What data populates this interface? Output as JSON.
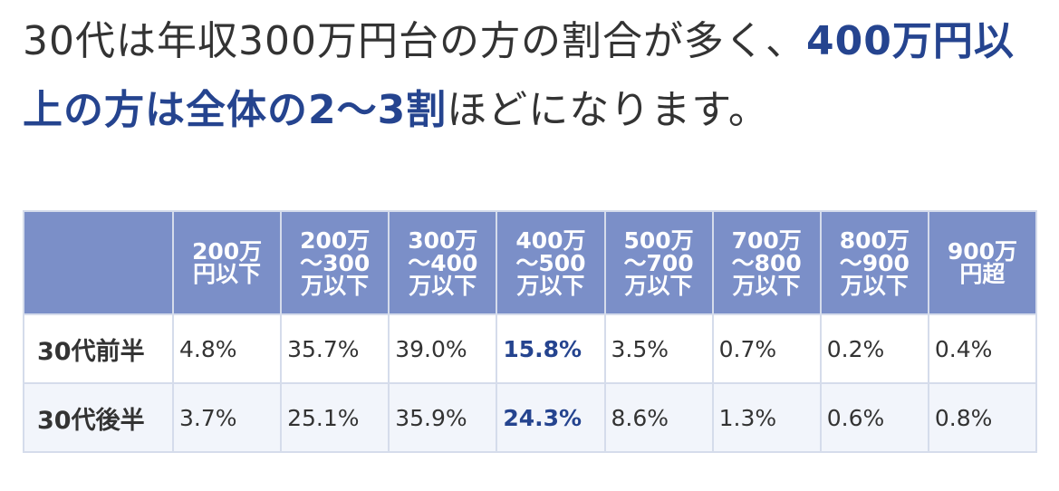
{
  "paragraph": [
    "30代は年収300万円台の方の割合が多く、",
    "400万円以上の方は全体の2〜3割",
    "ほどになります。"
  ],
  "table": {
    "headers": [
      "200万\n円以下",
      "200万\n〜300\n万以下",
      "300万\n〜400\n万以下",
      "400万\n〜500\n万以下",
      "500万\n〜700\n万以下",
      "700万\n〜800\n万以下",
      "800万\n〜900\n万以下",
      "900万\n円超"
    ],
    "rows": [
      {
        "label": "30代前半",
        "values": [
          "4.8%",
          "35.7%",
          "39.0%",
          "15.8%",
          "3.5%",
          "0.7%",
          "0.2%",
          "0.4%"
        ]
      },
      {
        "label": "30代後半",
        "values": [
          "3.7%",
          "25.1%",
          "35.9%",
          "24.3%",
          "8.6%",
          "1.3%",
          "0.6%",
          "0.8%"
        ]
      }
    ]
  }
}
